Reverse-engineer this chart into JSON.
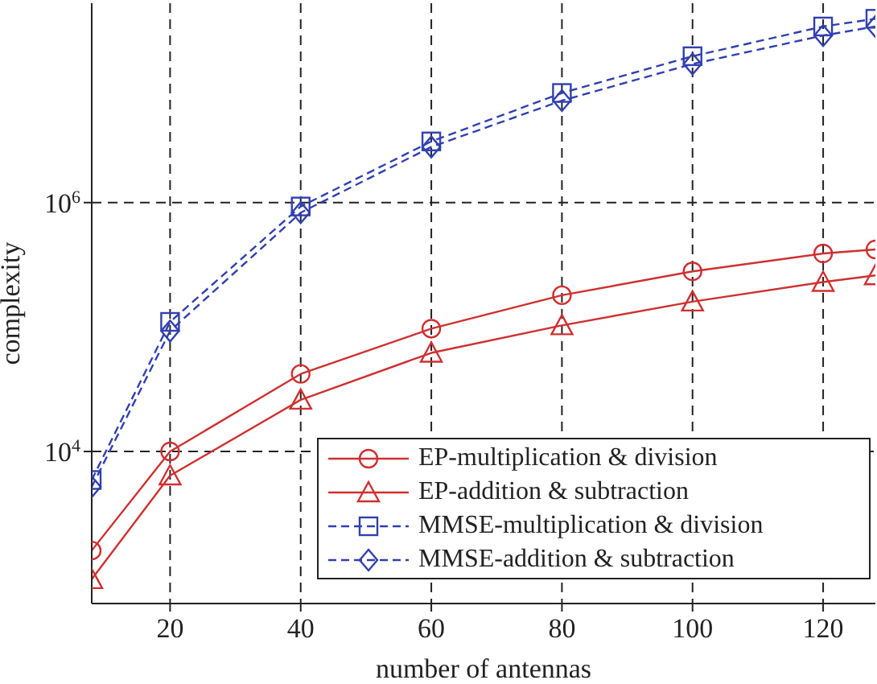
{
  "chart_data": {
    "type": "line",
    "xlabel": "number of antennas",
    "ylabel": "complexity",
    "log": "y",
    "grid": true,
    "legend": "bottom right",
    "x": [
      8,
      20,
      40,
      60,
      80,
      100,
      120,
      128
    ],
    "xlim": [
      8,
      128
    ],
    "xticks": [
      20,
      40,
      60,
      80,
      100,
      120
    ],
    "ylim": [
      600,
      40000000
    ],
    "yticks": [
      {
        "value": 10000,
        "label": "10$^{4}$"
      },
      {
        "value": 1000000,
        "label": "10$^{6}$"
      }
    ],
    "series": [
      {
        "name": "EP-multiplication & division",
        "color": "#d03030",
        "marker": "circle",
        "line_style": "solid",
        "values": [
          1600,
          10000,
          42000,
          97000,
          180000,
          280000,
          390000,
          420000
        ]
      },
      {
        "name": "EP-addition & subtraction",
        "color": "#d03030",
        "marker": "triangle",
        "line_style": "solid",
        "values": [
          940,
          6400,
          26000,
          62000,
          103000,
          160000,
          230000,
          260000
        ]
      },
      {
        "name": "MMSE-multiplication & division",
        "color": "#3040b0",
        "marker": "square",
        "line_style": "dashed",
        "values": [
          5900,
          110000,
          930000,
          3100000,
          7600000,
          15000000,
          26000000,
          30000000
        ]
      },
      {
        "name": "MMSE-addition & subtraction",
        "color": "#3040b0",
        "marker": "diamond",
        "line_style": "dashed",
        "values": [
          5200,
          93000,
          830000,
          2800000,
          6600000,
          13000000,
          22000000,
          26000000
        ]
      }
    ]
  }
}
